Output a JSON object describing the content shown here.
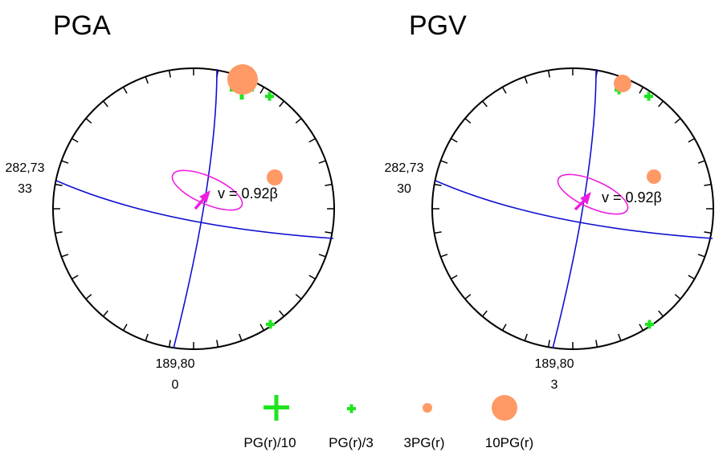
{
  "panels": [
    {
      "title": "PGA",
      "left_label_line1": "282,73",
      "left_label_line2": "33",
      "bottom_label_line1": "189,80",
      "bottom_label_line2": "0",
      "velocity_label": "v = 0.92β",
      "tick_count": 36
    },
    {
      "title": "PGV",
      "left_label_line1": "282,73",
      "left_label_line2": "30",
      "bottom_label_line1": "189,80",
      "bottom_label_line2": "3",
      "velocity_label": "v = 0.92β",
      "tick_count": 36
    }
  ],
  "legend": [
    {
      "label": "PG(r)/10",
      "symbol": "large-plus"
    },
    {
      "label": "PG(r)/3",
      "symbol": "small-plus"
    },
    {
      "label": "3PG(r)",
      "symbol": "small-circle"
    },
    {
      "label": "10PG(r)",
      "symbol": "large-circle"
    }
  ],
  "colors": {
    "plane": "#1010d0",
    "ellipse": "#ee1ee0",
    "plus": "#1ee51e",
    "circle": "#ff9966",
    "outline": "#000000"
  }
}
